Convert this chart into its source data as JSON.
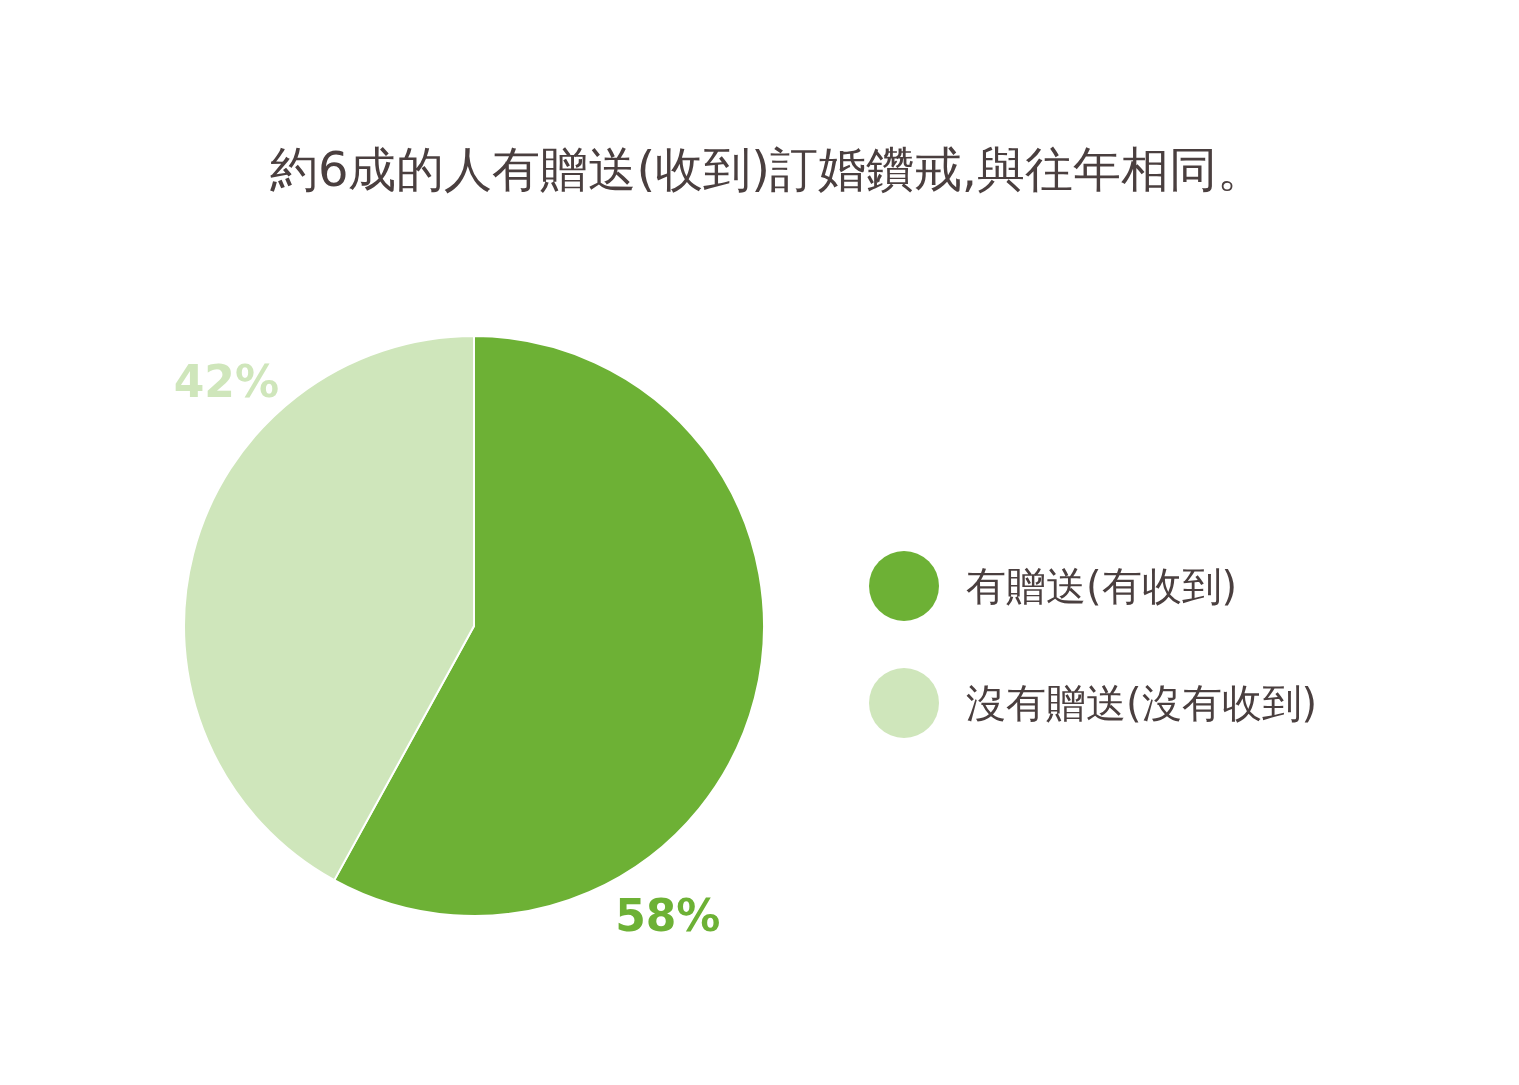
{
  "chart_data": {
    "type": "pie",
    "title": "約6成的人有贈送(收到)訂婚鑽戒,與往年相同。",
    "categories": [
      "有贈送(有收到)",
      "沒有贈送(沒有收到)"
    ],
    "values": [
      58,
      42
    ],
    "colors": [
      "#6db135",
      "#cfe6bb"
    ],
    "value_labels": [
      "58%",
      "42%"
    ],
    "legend": "right"
  }
}
